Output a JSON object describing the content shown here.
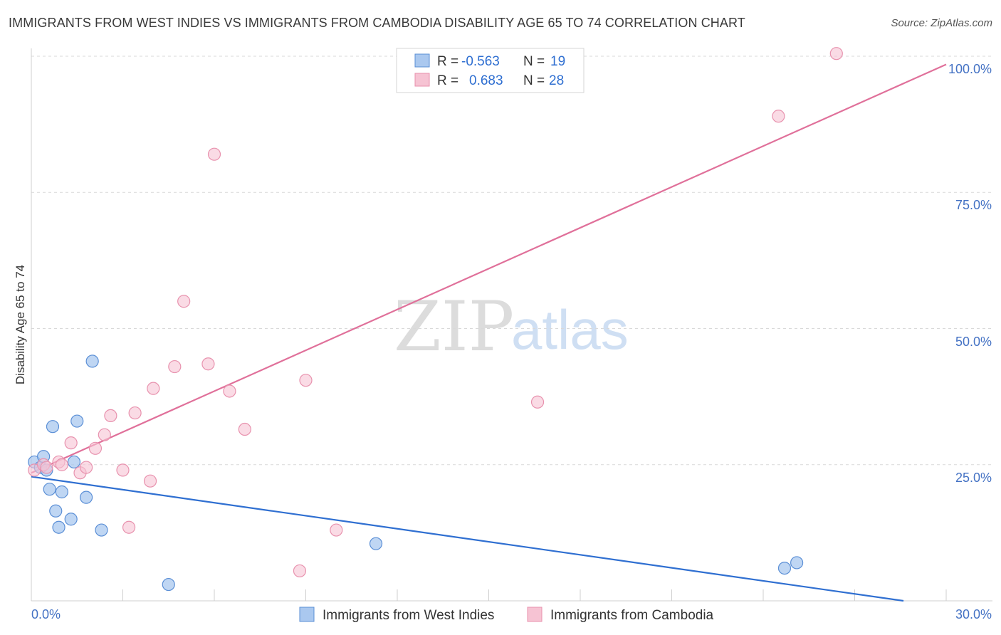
{
  "header": {
    "title": "IMMIGRANTS FROM WEST INDIES VS IMMIGRANTS FROM CAMBODIA DISABILITY AGE 65 TO 74 CORRELATION CHART",
    "source": "Source: ZipAtlas.com"
  },
  "watermark": {
    "zip": "ZIP",
    "atlas": "atlas"
  },
  "colors": {
    "blue_fill": "#aac8ef",
    "blue_stroke": "#5b8fd6",
    "blue_line": "#2f6fd1",
    "pink_fill": "#f6c3d3",
    "pink_stroke": "#e892ae",
    "pink_line": "#e0709a",
    "grid": "#d9d9d9",
    "axis_text": "#4472c4"
  },
  "legend": {
    "rows": [
      {
        "r_label": "R =",
        "r_value": "-0.563",
        "n_label": "N =",
        "n_value": "19"
      },
      {
        "r_label": "R =",
        "r_value": "0.683",
        "n_label": "N =",
        "n_value": "28"
      }
    ]
  },
  "chart_data": {
    "type": "scatter",
    "title": "IMMIGRANTS FROM WEST INDIES VS IMMIGRANTS FROM CAMBODIA DISABILITY AGE 65 TO 74 CORRELATION CHART",
    "xlabel": "",
    "ylabel": "Disability Age 65 to 74",
    "xlim": [
      0,
      30
    ],
    "ylim": [
      0,
      100
    ],
    "x_tick_labels": [
      "0.0%",
      "30.0%"
    ],
    "y_ticks": [
      25,
      50,
      75,
      100
    ],
    "y_tick_labels": [
      "25.0%",
      "50.0%",
      "75.0%",
      "100.0%"
    ],
    "grid": true,
    "legend_position": "top-center",
    "series": [
      {
        "name": "Immigrants from West Indies",
        "color": "#5b8fd6",
        "r": -0.563,
        "n": 19,
        "trend": {
          "x": [
            0,
            28.6
          ],
          "y": [
            22.8,
            0
          ]
        },
        "points": [
          [
            0.1,
            25.5
          ],
          [
            0.3,
            24.5
          ],
          [
            0.4,
            26.5
          ],
          [
            0.5,
            24.0
          ],
          [
            0.6,
            20.5
          ],
          [
            0.7,
            32.0
          ],
          [
            0.8,
            16.5
          ],
          [
            0.9,
            13.5
          ],
          [
            1.0,
            20.0
          ],
          [
            1.3,
            15.0
          ],
          [
            1.4,
            25.5
          ],
          [
            1.5,
            33.0
          ],
          [
            1.8,
            19.0
          ],
          [
            2.0,
            44.0
          ],
          [
            2.3,
            13.0
          ],
          [
            4.5,
            3.0
          ],
          [
            11.3,
            10.5
          ],
          [
            24.7,
            6.0
          ],
          [
            25.1,
            7.0
          ]
        ]
      },
      {
        "name": "Immigrants from Cambodia",
        "color": "#e892ae",
        "r": 0.683,
        "n": 28,
        "trend": {
          "x": [
            0,
            30
          ],
          "y": [
            23.5,
            98.5
          ]
        },
        "points": [
          [
            0.1,
            24.0
          ],
          [
            0.4,
            25.0
          ],
          [
            0.5,
            24.5
          ],
          [
            0.9,
            25.5
          ],
          [
            1.0,
            25.0
          ],
          [
            1.3,
            29.0
          ],
          [
            1.6,
            23.5
          ],
          [
            1.8,
            24.5
          ],
          [
            2.1,
            28.0
          ],
          [
            2.4,
            30.5
          ],
          [
            2.6,
            34.0
          ],
          [
            3.0,
            24.0
          ],
          [
            3.2,
            13.5
          ],
          [
            3.4,
            34.5
          ],
          [
            3.9,
            22.0
          ],
          [
            4.0,
            39.0
          ],
          [
            4.7,
            43.0
          ],
          [
            5.0,
            55.0
          ],
          [
            5.8,
            43.5
          ],
          [
            6.0,
            82.0
          ],
          [
            6.5,
            38.5
          ],
          [
            7.0,
            31.5
          ],
          [
            8.8,
            5.5
          ],
          [
            9.0,
            40.5
          ],
          [
            10.0,
            13.0
          ],
          [
            16.6,
            36.5
          ],
          [
            24.5,
            89.0
          ],
          [
            26.4,
            100.5
          ]
        ]
      }
    ]
  }
}
